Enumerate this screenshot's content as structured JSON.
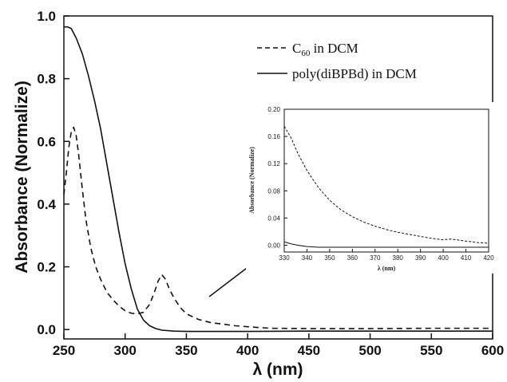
{
  "chart_data": [
    {
      "type": "line",
      "xlabel": "λ (nm)",
      "ylabel": "Absorbance (Normalize)",
      "xlim": [
        250,
        600
      ],
      "ylim": [
        -0.03,
        1.0
      ],
      "xticks": [
        "250",
        "300",
        "350",
        "400",
        "450",
        "500",
        "550",
        "600"
      ],
      "yticks": [
        "0.0",
        "0.2",
        "0.4",
        "0.6",
        "0.8",
        "1.0"
      ],
      "grid": false,
      "legend_position": "top-right",
      "series": [
        {
          "name": "C60 in DCM",
          "name_main": "C",
          "name_sub": "60",
          "name_suffix": " in DCM",
          "style": "dashed",
          "color": "#111111",
          "x": [
            250,
            252,
            254,
            256,
            258,
            260,
            262,
            265,
            268,
            272,
            276,
            280,
            285,
            290,
            295,
            300,
            305,
            310,
            315,
            320,
            324,
            327,
            330,
            333,
            336,
            340,
            345,
            350,
            360,
            370,
            380,
            390,
            400,
            410,
            420,
            450,
            500,
            550,
            600
          ],
          "y": [
            0.43,
            0.5,
            0.58,
            0.63,
            0.645,
            0.62,
            0.56,
            0.45,
            0.35,
            0.26,
            0.2,
            0.16,
            0.12,
            0.095,
            0.075,
            0.06,
            0.052,
            0.05,
            0.055,
            0.08,
            0.12,
            0.155,
            0.175,
            0.16,
            0.13,
            0.1,
            0.07,
            0.05,
            0.032,
            0.022,
            0.017,
            0.012,
            0.009,
            0.006,
            0.004,
            0.003,
            0.003,
            0.004,
            0.004
          ]
        },
        {
          "name": "poly(diBPBd) in DCM",
          "style": "solid",
          "color": "#111111",
          "x": [
            250,
            253,
            256,
            260,
            265,
            270,
            275,
            280,
            285,
            290,
            295,
            300,
            305,
            310,
            315,
            320,
            325,
            330,
            340,
            350,
            400,
            450,
            500,
            550,
            600
          ],
          "y": [
            0.965,
            0.965,
            0.96,
            0.93,
            0.88,
            0.81,
            0.73,
            0.64,
            0.53,
            0.42,
            0.31,
            0.21,
            0.13,
            0.065,
            0.03,
            0.012,
            0.003,
            -0.002,
            -0.005,
            -0.006,
            -0.006,
            -0.005,
            -0.005,
            -0.005,
            -0.005
          ]
        }
      ]
    },
    {
      "type": "line",
      "role": "inset",
      "xlabel": "λ (nm)",
      "ylabel": "Absorbance (Normalize)",
      "xlim": [
        330,
        420
      ],
      "ylim": [
        -0.01,
        0.2
      ],
      "xticks": [
        "330",
        "340",
        "350",
        "360",
        "370",
        "380",
        "390",
        "400",
        "410",
        "420"
      ],
      "yticks": [
        "0.00",
        "0.04",
        "0.08",
        "0.12",
        "0.16",
        "0.20"
      ],
      "series": [
        {
          "style": "dashed",
          "x": [
            330,
            333,
            336,
            340,
            345,
            350,
            355,
            360,
            365,
            370,
            375,
            380,
            385,
            390,
            395,
            400,
            403,
            406,
            410,
            415,
            420
          ],
          "y": [
            0.175,
            0.158,
            0.135,
            0.11,
            0.085,
            0.066,
            0.052,
            0.042,
            0.034,
            0.028,
            0.023,
            0.019,
            0.016,
            0.013,
            0.01,
            0.008,
            0.009,
            0.008,
            0.006,
            0.004,
            0.003
          ]
        },
        {
          "style": "solid",
          "x": [
            330,
            333,
            336,
            340,
            345,
            350,
            360,
            380,
            400,
            420
          ],
          "y": [
            0.005,
            0.002,
            0.0,
            -0.002,
            -0.003,
            -0.003,
            -0.003,
            -0.003,
            -0.003,
            -0.003
          ]
        }
      ]
    }
  ]
}
